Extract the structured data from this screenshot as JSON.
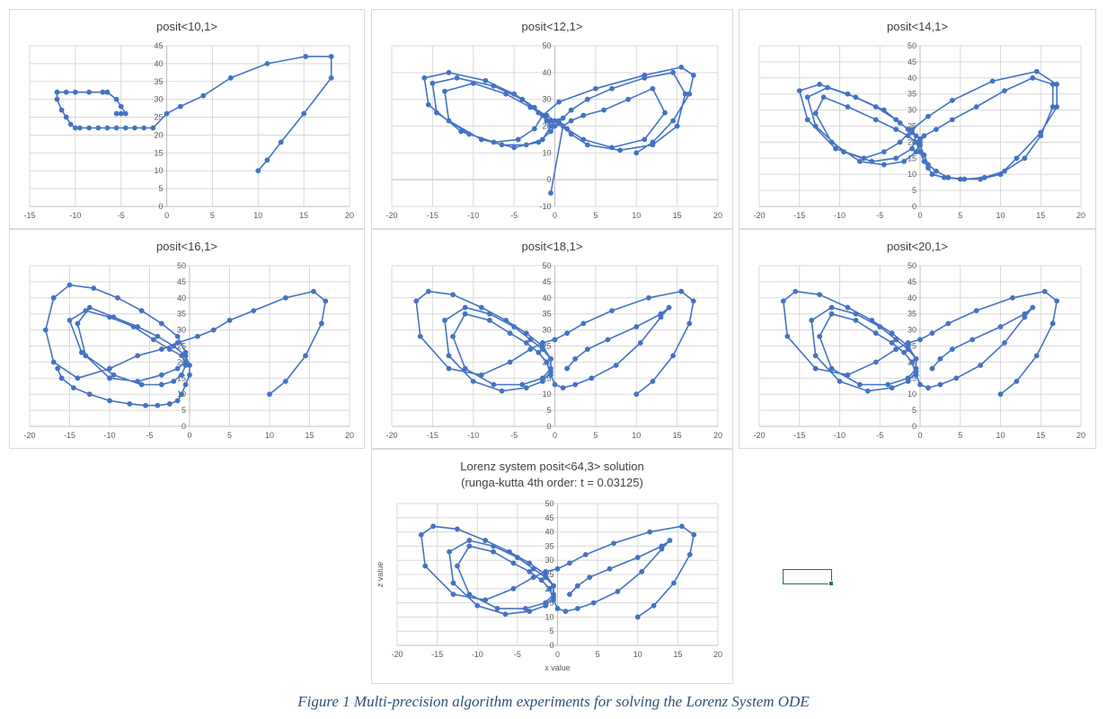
{
  "caption": "Figure 1 Multi-precision algorithm experiments for solving the Lorenz System ODE",
  "series_color": "#4472c4",
  "selected_cell_color": "#217346",
  "chart_data": [
    {
      "type": "scatter",
      "title": "posit<10,1>",
      "xlabel": "",
      "ylabel": "",
      "xlim": [
        -15,
        20
      ],
      "ylim": [
        0,
        45
      ],
      "xticks": [
        -15,
        -10,
        -5,
        0,
        5,
        10,
        15,
        20
      ],
      "yticks": [
        0,
        5,
        10,
        15,
        20,
        25,
        30,
        35,
        40,
        45
      ],
      "x": [
        10,
        11,
        12.5,
        15,
        18,
        18,
        15.2,
        11,
        7,
        4,
        1.5,
        0,
        -1.5,
        -2.5,
        -3.5,
        -4.5,
        -5.5,
        -6.5,
        -7.5,
        -8.5,
        -9.5,
        -10,
        -10.5,
        -11,
        -11.5,
        -12,
        -12,
        -11,
        -10,
        -8.5,
        -7,
        -6.5,
        -5.5,
        -5,
        -4.5,
        -5,
        -5.5
      ],
      "y": [
        10,
        13,
        18,
        26,
        36,
        42,
        42,
        40,
        36,
        31,
        28,
        26,
        22,
        22,
        22,
        22,
        22,
        22,
        22,
        22,
        22,
        22,
        23,
        25,
        27,
        30,
        32,
        32,
        32,
        32,
        32,
        32,
        30,
        28,
        26,
        26,
        26
      ]
    },
    {
      "type": "scatter",
      "title": "posit<12,1>",
      "xlabel": "",
      "ylabel": "",
      "xlim": [
        -20,
        20
      ],
      "ylim": [
        -10,
        50
      ],
      "xticks": [
        -20,
        -15,
        -10,
        -5,
        0,
        5,
        10,
        15,
        20
      ],
      "yticks": [
        -10,
        0,
        10,
        20,
        30,
        40,
        50
      ],
      "x": [
        10,
        12,
        14.5,
        16.5,
        17,
        15.5,
        11,
        5,
        0.5,
        -1.5,
        -2.5,
        -4.5,
        -7.5,
        -11.5,
        -15.5,
        -16,
        -13,
        -8.5,
        -5,
        -2.5,
        -1,
        -0.5,
        -1.5,
        -3.5,
        -6.5,
        -10.5,
        -14.5,
        -15,
        -12,
        -7.5,
        -4,
        -2,
        -0.5,
        0,
        -0.5,
        -2,
        -5,
        -9,
        -13,
        -13.5,
        -10,
        -6,
        -3,
        -1,
        0,
        0.5,
        2,
        4,
        8,
        12,
        15,
        16,
        14.5,
        11,
        7,
        4,
        2,
        1,
        0.5,
        1.5,
        3.5,
        7,
        11,
        13.5,
        12,
        9,
        6,
        3.5,
        2,
        1,
        -0.5
      ],
      "y": [
        10,
        14,
        22,
        32,
        39,
        42,
        39,
        34,
        29,
        24,
        19,
        15,
        14,
        18,
        28,
        38,
        40,
        37,
        32,
        27,
        22,
        20,
        15,
        13,
        13,
        17,
        25,
        36,
        38,
        35,
        30,
        25,
        22,
        20,
        18,
        14,
        12,
        15,
        22,
        33,
        36,
        32,
        27,
        24,
        22,
        21,
        17,
        13,
        11,
        13,
        20,
        32,
        40,
        38,
        34,
        30,
        26,
        23,
        22,
        19,
        15,
        12,
        15,
        25,
        34,
        30,
        26,
        24,
        22,
        20,
        -5
      ]
    },
    {
      "type": "scatter",
      "title": "posit<14,1>",
      "xlabel": "",
      "ylabel": "",
      "xlim": [
        -20,
        20
      ],
      "ylim": [
        0,
        50
      ],
      "xticks": [
        -20,
        -15,
        -10,
        -5,
        0,
        5,
        10,
        15,
        20
      ],
      "yticks": [
        0,
        5,
        10,
        15,
        20,
        25,
        30,
        35,
        40,
        45,
        50
      ],
      "x": [
        10,
        12,
        15,
        17,
        17,
        14.5,
        9,
        4,
        1,
        -1,
        -2.5,
        -4.5,
        -7,
        -10.5,
        -14,
        -15,
        -12.5,
        -9,
        -5.5,
        -3,
        -1.5,
        -0.5,
        -1,
        -3,
        -6,
        -9.5,
        -13,
        -14,
        -11.5,
        -8,
        -4.5,
        -2.5,
        -1,
        0,
        0,
        0.5,
        1,
        2,
        3.5,
        5.5,
        8,
        10.5,
        13,
        15,
        16.5,
        16.5,
        14,
        10.5,
        7,
        4,
        2,
        0.5,
        0,
        -0.5,
        -2,
        -4.5,
        -7.5,
        -11,
        -13,
        -12,
        -9,
        -5.5,
        -3,
        -1.5,
        -0.5,
        0,
        0.5,
        1,
        1.5,
        3,
        5,
        7.5,
        10
      ],
      "y": [
        10,
        15,
        23,
        31,
        38,
        42,
        39,
        33,
        28,
        24,
        20,
        17,
        15,
        18,
        27,
        36,
        38,
        35,
        31,
        27,
        24,
        22,
        18,
        15,
        14,
        17,
        25,
        34,
        37,
        34,
        30,
        26,
        23,
        21,
        19,
        16,
        13,
        11,
        9,
        8.5,
        9,
        11,
        15,
        22,
        31,
        38,
        40,
        36,
        31,
        27,
        24,
        22,
        20,
        17,
        14,
        13,
        14,
        20,
        29,
        34,
        31,
        27,
        24,
        22,
        20,
        17,
        14,
        12,
        10,
        9,
        8.5,
        8.5,
        10
      ]
    },
    {
      "type": "scatter",
      "title": "posit<16,1>",
      "xlabel": "",
      "ylabel": "",
      "xlim": [
        -20,
        20
      ],
      "ylim": [
        0,
        50
      ],
      "xticks": [
        -20,
        -15,
        -10,
        -5,
        0,
        5,
        10,
        15,
        20
      ],
      "yticks": [
        0,
        5,
        10,
        15,
        20,
        25,
        30,
        35,
        40,
        45,
        50
      ],
      "x": [
        10,
        12,
        14.5,
        16.5,
        17,
        15.5,
        12,
        8,
        5,
        3,
        1,
        -1.5,
        -3.5,
        -6.5,
        -10,
        -14,
        -17,
        -18,
        -17,
        -15,
        -12,
        -9,
        -6,
        -3.5,
        -1.5,
        -0.5,
        -0.5,
        -1,
        -2,
        -3.5,
        -6,
        -9.5,
        -13.5,
        -15,
        -13,
        -10,
        -7,
        -4.5,
        -2.5,
        -1,
        -0.5,
        -1.5,
        -3.5,
        -6.5,
        -10,
        -13,
        -14,
        -12.5,
        -9.5,
        -6.5,
        -4,
        -2,
        -0.5,
        0,
        0,
        -0.5,
        -1,
        -1.5,
        -2.5,
        -4,
        -5.5,
        -7.5,
        -10,
        -12.5,
        -14.5,
        -16,
        -16.5
      ],
      "y": [
        10,
        14,
        22,
        32,
        39,
        42,
        40,
        36,
        33,
        30,
        28,
        26,
        24,
        22,
        18,
        15,
        20,
        30,
        40,
        44,
        43,
        40,
        36,
        32,
        28,
        23,
        19,
        16,
        14,
        13,
        13,
        16,
        23,
        33,
        36,
        34,
        31,
        27,
        24,
        22,
        20,
        18,
        16,
        14,
        15,
        22,
        32,
        37,
        34,
        31,
        28,
        25,
        22,
        19,
        16,
        13,
        10,
        8,
        7,
        6.5,
        6.5,
        7,
        8,
        10,
        12,
        15,
        18
      ]
    },
    {
      "type": "scatter",
      "title": "posit<18,1>",
      "xlabel": "",
      "ylabel": "",
      "xlim": [
        -20,
        20
      ],
      "ylim": [
        0,
        50
      ],
      "xticks": [
        -20,
        -15,
        -10,
        -5,
        0,
        5,
        10,
        15,
        20
      ],
      "yticks": [
        0,
        5,
        10,
        15,
        20,
        25,
        30,
        35,
        40,
        45,
        50
      ],
      "x": [
        10,
        12,
        14.5,
        16.5,
        17,
        15.5,
        11.5,
        7,
        3.5,
        1.5,
        0,
        -1.5,
        -3,
        -5.5,
        -9,
        -13,
        -16.5,
        -17,
        -15.5,
        -12.5,
        -9,
        -6,
        -3.5,
        -1.5,
        -0.5,
        -0.5,
        -1.5,
        -3.5,
        -6.5,
        -10,
        -13,
        -13.5,
        -11,
        -8,
        -5,
        -3,
        -1.5,
        -0.5,
        -0.5,
        -1.5,
        -4,
        -7.5,
        -11,
        -12.5,
        -11,
        -8,
        -5.5,
        -3.5,
        -2,
        -1,
        -0.5,
        0,
        1,
        2.5,
        4.5,
        7.5,
        10.5,
        13,
        14,
        13,
        10,
        6.5,
        4,
        2.5,
        1.5
      ],
      "y": [
        10,
        14,
        22,
        32,
        39,
        42,
        40,
        36,
        32,
        29,
        27,
        26,
        24,
        20,
        16,
        18,
        28,
        39,
        42,
        41,
        37,
        33,
        29,
        25,
        21,
        17,
        14,
        12,
        11,
        14,
        22,
        33,
        37,
        35,
        31,
        27,
        24,
        21,
        18,
        15,
        13,
        13,
        18,
        28,
        35,
        33,
        29,
        26,
        23,
        20,
        16,
        13,
        12,
        13,
        15,
        19,
        26,
        34,
        37,
        35,
        31,
        27,
        24,
        21,
        18
      ]
    },
    {
      "type": "scatter",
      "title": "posit<20,1>",
      "xlabel": "",
      "ylabel": "",
      "xlim": [
        -20,
        20
      ],
      "ylim": [
        0,
        50
      ],
      "xticks": [
        -20,
        -15,
        -10,
        -5,
        0,
        5,
        10,
        15,
        20
      ],
      "yticks": [
        0,
        5,
        10,
        15,
        20,
        25,
        30,
        35,
        40,
        45,
        50
      ],
      "x": [
        10,
        12,
        14.5,
        16.5,
        17,
        15.5,
        11.5,
        7,
        3.5,
        1.5,
        0,
        -1.5,
        -3,
        -5.5,
        -9,
        -13,
        -16.5,
        -17,
        -15.5,
        -12.5,
        -9,
        -6,
        -3.5,
        -1.5,
        -0.5,
        -0.5,
        -1.5,
        -3.5,
        -6.5,
        -10,
        -13,
        -13.5,
        -11,
        -8,
        -5,
        -3,
        -1.5,
        -0.5,
        -0.5,
        -1.5,
        -4,
        -7.5,
        -11,
        -12.5,
        -11,
        -8,
        -5.5,
        -3.5,
        -2,
        -1,
        -0.5,
        0,
        1,
        2.5,
        4.5,
        7.5,
        10.5,
        13,
        14,
        13,
        10,
        6.5,
        4,
        2.5,
        1.5
      ],
      "y": [
        10,
        14,
        22,
        32,
        39,
        42,
        40,
        36,
        32,
        29,
        27,
        26,
        24,
        20,
        16,
        18,
        28,
        39,
        42,
        41,
        37,
        33,
        29,
        25,
        21,
        17,
        14,
        12,
        11,
        14,
        22,
        33,
        37,
        35,
        31,
        27,
        24,
        21,
        18,
        15,
        13,
        13,
        18,
        28,
        35,
        33,
        29,
        26,
        23,
        20,
        16,
        13,
        12,
        13,
        15,
        19,
        26,
        34,
        37,
        35,
        31,
        27,
        24,
        21,
        18
      ]
    },
    {
      "type": "scatter",
      "title": "Lorenz system posit<64,3> solution",
      "subtitle": "(runga-kutta 4th order: t = 0.03125)",
      "xlabel": "x value",
      "ylabel": "z value",
      "xlim": [
        -20,
        20
      ],
      "ylim": [
        0,
        50
      ],
      "xticks": [
        -20,
        -15,
        -10,
        -5,
        0,
        5,
        10,
        15,
        20
      ],
      "yticks": [
        0,
        5,
        10,
        15,
        20,
        25,
        30,
        35,
        40,
        45,
        50
      ],
      "x": [
        10,
        12,
        14.5,
        16.5,
        17,
        15.5,
        11.5,
        7,
        3.5,
        1.5,
        0,
        -1.5,
        -3,
        -5.5,
        -9,
        -13,
        -16.5,
        -17,
        -15.5,
        -12.5,
        -9,
        -6,
        -3.5,
        -1.5,
        -0.5,
        -0.5,
        -1.5,
        -3.5,
        -6.5,
        -10,
        -13,
        -13.5,
        -11,
        -8,
        -5,
        -3,
        -1.5,
        -0.5,
        -0.5,
        -1.5,
        -4,
        -7.5,
        -11,
        -12.5,
        -11,
        -8,
        -5.5,
        -3.5,
        -2,
        -1,
        -0.5,
        0,
        1,
        2.5,
        4.5,
        7.5,
        10.5,
        13,
        14,
        13,
        10,
        6.5,
        4,
        2.5,
        1.5
      ],
      "y": [
        10,
        14,
        22,
        32,
        39,
        42,
        40,
        36,
        32,
        29,
        27,
        26,
        24,
        20,
        16,
        18,
        28,
        39,
        42,
        41,
        37,
        33,
        29,
        25,
        21,
        17,
        14,
        12,
        11,
        14,
        22,
        33,
        37,
        35,
        31,
        27,
        24,
        21,
        18,
        15,
        13,
        13,
        18,
        28,
        35,
        33,
        29,
        26,
        23,
        20,
        16,
        13,
        12,
        13,
        15,
        19,
        26,
        34,
        37,
        35,
        31,
        27,
        24,
        21,
        18
      ]
    }
  ]
}
